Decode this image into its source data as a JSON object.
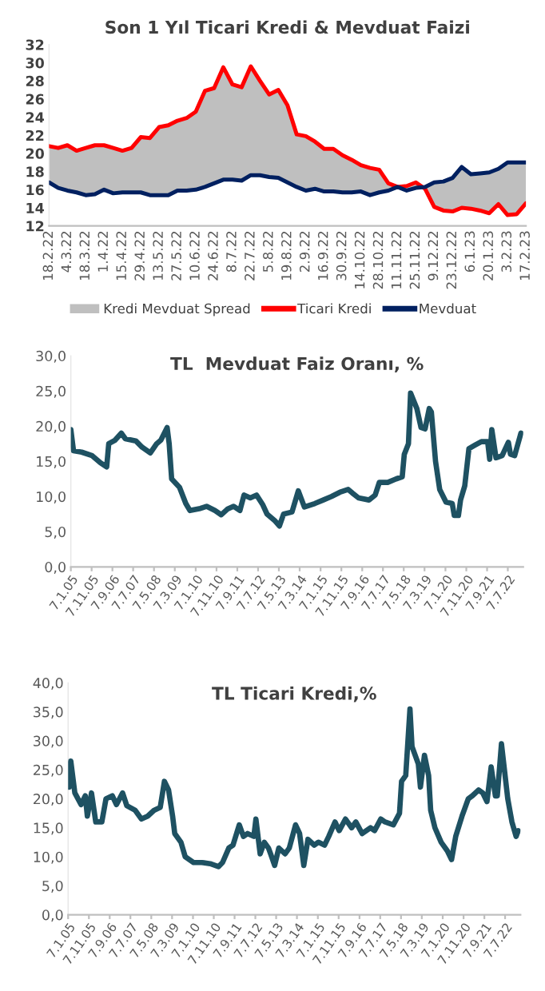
{
  "chart_data": [
    {
      "type": "line",
      "title": "Son 1 Yıl Ticari Kredi & Mevduat Faizi",
      "categories": [
        "18.2.22",
        null,
        "4.3.22",
        null,
        "18.3.22",
        null,
        "1.4.22",
        null,
        "15.4.22",
        null,
        "29.4.22",
        null,
        "13.5.22",
        null,
        "27.5.22",
        null,
        "10.6.22",
        null,
        "24.6.22",
        null,
        "8.7.22",
        null,
        "22.7.22",
        null,
        "5.8.22",
        null,
        "19.8.22",
        null,
        "2.9.22",
        null,
        "16.9.22",
        null,
        "30.9.22",
        null,
        "14.10.22",
        null,
        "28.10.22",
        null,
        "11.11.22",
        null,
        "25.11.22",
        null,
        "9.12.22",
        null,
        "23.12.22",
        null,
        "6.1.23",
        null,
        "20.1.23",
        null,
        "3.2.23",
        null,
        "17.2.23"
      ],
      "series": [
        {
          "name": "Kredi Mevduat Spread",
          "color": "#bfbfbf",
          "values": [
            null,
            null,
            null,
            null,
            null,
            null,
            null,
            null,
            null,
            null,
            null,
            null,
            null,
            null,
            null,
            null,
            null,
            null,
            null,
            null,
            null,
            null,
            null,
            null,
            null,
            null,
            null,
            null,
            null,
            null,
            null,
            null,
            null,
            null,
            null,
            null,
            null,
            null,
            null,
            null,
            null,
            null,
            null,
            null,
            null,
            null,
            null,
            null,
            null,
            null,
            null,
            null,
            null
          ],
          "lower": [
            16.8,
            16.2,
            15.9,
            15.7,
            15.4,
            15.5,
            16.0,
            15.6,
            15.7,
            15.7,
            15.7,
            15.4,
            15.4,
            15.4,
            15.9,
            15.9,
            16.0,
            16.3,
            16.7,
            17.1,
            17.1,
            17.0,
            17.6,
            17.6,
            17.4,
            17.3,
            16.8,
            16.3,
            15.9,
            16.1,
            15.8,
            15.8,
            15.7,
            15.7,
            15.8,
            15.4,
            15.7,
            15.9,
            16.3,
            15.9,
            16.2,
            16.3,
            16.8,
            16.9,
            17.3,
            18.5,
            17.7,
            17.8,
            17.9,
            18.3,
            19.0,
            19.0,
            19.0
          ],
          "upper": [
            20.8,
            20.6,
            20.9,
            20.3,
            20.6,
            20.9,
            20.9,
            20.6,
            20.3,
            20.6,
            21.8,
            21.7,
            22.9,
            23.1,
            23.6,
            23.9,
            24.6,
            26.9,
            27.2,
            29.5,
            27.6,
            27.3,
            29.6,
            28.0,
            26.5,
            27.0,
            25.3,
            22.1,
            21.9,
            21.3,
            20.5,
            20.5,
            19.8,
            19.3,
            18.7,
            18.4,
            18.2,
            16.7,
            16.3,
            16.4,
            16.8,
            16.1,
            14.1,
            13.7,
            13.6,
            14.0,
            13.9,
            13.7,
            13.4,
            14.4,
            13.2,
            13.3,
            14.5
          ]
        },
        {
          "name": "Ticari Kredi",
          "color": "#ff0000",
          "values": [
            20.8,
            20.6,
            20.9,
            20.3,
            20.6,
            20.9,
            20.9,
            20.6,
            20.3,
            20.6,
            21.8,
            21.7,
            22.9,
            23.1,
            23.6,
            23.9,
            24.6,
            26.9,
            27.2,
            29.5,
            27.6,
            27.3,
            29.6,
            28.0,
            26.5,
            27.0,
            25.3,
            22.1,
            21.9,
            21.3,
            20.5,
            20.5,
            19.8,
            19.3,
            18.7,
            18.4,
            18.2,
            16.7,
            16.3,
            16.4,
            16.8,
            16.1,
            14.1,
            13.7,
            13.6,
            14.0,
            13.9,
            13.7,
            13.4,
            14.4,
            13.2,
            13.3,
            14.5
          ]
        },
        {
          "name": "Mevduat",
          "color": "#002060",
          "values": [
            16.8,
            16.2,
            15.9,
            15.7,
            15.4,
            15.5,
            16.0,
            15.6,
            15.7,
            15.7,
            15.7,
            15.4,
            15.4,
            15.4,
            15.9,
            15.9,
            16.0,
            16.3,
            16.7,
            17.1,
            17.1,
            17.0,
            17.6,
            17.6,
            17.4,
            17.3,
            16.8,
            16.3,
            15.9,
            16.1,
            15.8,
            15.8,
            15.7,
            15.7,
            15.8,
            15.4,
            15.7,
            15.9,
            16.3,
            15.9,
            16.2,
            16.3,
            16.8,
            16.9,
            17.3,
            18.5,
            17.7,
            17.8,
            17.9,
            18.3,
            19.0,
            19.0,
            19.0
          ]
        }
      ],
      "ylim": [
        12,
        32
      ],
      "yticks": [
        12,
        14,
        16,
        18,
        20,
        22,
        24,
        26,
        28,
        30,
        32
      ],
      "legend": "bottom",
      "grid": false
    },
    {
      "type": "line",
      "title": "TL  Mevduat Faiz Oranı, %",
      "series": [
        {
          "color": "#1e5162",
          "x": [
            "2005-01-07",
            "2005-02",
            "2005-06",
            "2005-11",
            "2006-03",
            "2006-06",
            "2006-07",
            "2006-10",
            "2007-01",
            "2007-03",
            "2007-08",
            "2007-11",
            "2008-03",
            "2008-06",
            "2008-08",
            "2008-11",
            "2008-12",
            "2009-01-20",
            "2009-05",
            "2009-08",
            "2009-10",
            "2010-03",
            "2010-06",
            "2010-10",
            "2011-01",
            "2011-04",
            "2011-07",
            "2011-10",
            "2011-12",
            "2012-03",
            "2012-06",
            "2012-09",
            "2012-11",
            "2013-03",
            "2013-05",
            "2013-07",
            "2013-11",
            "2014-02",
            "2014-05",
            "2014-10",
            "2015-02",
            "2015-06",
            "2015-10",
            "2016-02",
            "2016-04",
            "2016-07",
            "2016-12",
            "2017-03",
            "2017-05",
            "2017-09",
            "2018-01",
            "2018-04",
            "2018-05",
            "2018-07",
            "2018-08",
            "2018-11",
            "2019-01",
            "2019-03",
            "2019-05",
            "2019-06",
            "2019-08",
            "2019-10",
            "2020-01",
            "2020-04",
            "2020-05",
            "2020-07",
            "2020-08",
            "2020-10",
            "2020-12",
            "2021-03",
            "2021-06",
            "2021-09",
            "2021-10",
            "2021-11",
            "2022-01",
            "2022-04",
            "2022-07",
            "2022-08",
            "2022-10",
            "2023-01"
          ],
          "values": [
            19.5,
            16.5,
            16.3,
            15.8,
            14.8,
            14.2,
            17.5,
            18.0,
            19.0,
            18.2,
            17.9,
            17.0,
            16.2,
            17.5,
            18.0,
            19.8,
            17.5,
            12.5,
            11.3,
            9.0,
            8.0,
            8.3,
            8.6,
            8.0,
            7.4,
            8.2,
            8.6,
            8.0,
            10.2,
            9.8,
            10.2,
            8.8,
            7.5,
            6.5,
            5.8,
            7.5,
            7.8,
            10.8,
            8.5,
            9.0,
            9.5,
            10.0,
            10.6,
            11.0,
            10.5,
            9.8,
            9.5,
            10.2,
            12.0,
            12.0,
            12.5,
            12.8,
            16.0,
            17.5,
            24.7,
            22.5,
            19.8,
            19.6,
            22.5,
            22.0,
            15.0,
            11.0,
            9.2,
            9.0,
            7.3,
            7.3,
            9.5,
            11.5,
            16.8,
            17.3,
            17.8,
            17.8,
            15.3,
            19.5,
            15.5,
            15.8,
            17.7,
            16.0,
            15.8,
            19.0
          ]
        }
      ],
      "xlim": [
        "2005-01-07",
        "2023-02-17"
      ],
      "xticks": [
        {
          "value": "2005-01-07",
          "label": "7.1.05"
        },
        {
          "value": "2005-11-07",
          "label": "7.11.05"
        },
        {
          "value": "2006-09-07",
          "label": "7.9.06"
        },
        {
          "value": "2007-07-07",
          "label": "7.7.07"
        },
        {
          "value": "2008-05-07",
          "label": "7.5.08"
        },
        {
          "value": "2009-03-07",
          "label": "7.3.09"
        },
        {
          "value": "2010-01-07",
          "label": "7.1.10"
        },
        {
          "value": "2010-11-07",
          "label": "7.11.10"
        },
        {
          "value": "2011-09-07",
          "label": "7.9.11"
        },
        {
          "value": "2012-07-07",
          "label": "7.7.12"
        },
        {
          "value": "2013-05-07",
          "label": "7.5.13"
        },
        {
          "value": "2014-03-07",
          "label": "7.3.14"
        },
        {
          "value": "2015-01-07",
          "label": "7.1.15"
        },
        {
          "value": "2015-11-07",
          "label": "7.11.15"
        },
        {
          "value": "2016-09-07",
          "label": "7.9.16"
        },
        {
          "value": "2017-07-07",
          "label": "7.7.17"
        },
        {
          "value": "2018-05-07",
          "label": "7.5.18"
        },
        {
          "value": "2019-03-07",
          "label": "7.3.19"
        },
        {
          "value": "2020-01-07",
          "label": "7.1.20"
        },
        {
          "value": "2020-11-07",
          "label": "7.11.20"
        },
        {
          "value": "2021-09-07",
          "label": "7.9.21"
        },
        {
          "value": "2022-07-07",
          "label": "7.7.22"
        }
      ],
      "ylim": [
        0,
        30
      ],
      "yticks": [
        {
          "value": 0,
          "label": "0,0"
        },
        {
          "value": 5,
          "label": "5,0"
        },
        {
          "value": 10,
          "label": "10,0"
        },
        {
          "value": 15,
          "label": "15,0"
        },
        {
          "value": 20,
          "label": "20,0"
        },
        {
          "value": 25,
          "label": "25,0"
        },
        {
          "value": 30,
          "label": "30,0"
        }
      ],
      "grid": false
    },
    {
      "type": "line",
      "title": "TL Ticari Kredi,%",
      "series": [
        {
          "color": "#1e5162",
          "x": [
            "2005-01-07",
            "2005-01-21",
            "2005-02-15",
            "2005-04",
            "2005-07",
            "2005-09",
            "2005-10",
            "2005-12",
            "2006-02",
            "2006-05",
            "2006-07",
            "2006-10",
            "2006-12",
            "2007-03",
            "2007-05",
            "2007-09",
            "2007-12",
            "2008-03",
            "2008-06",
            "2008-09",
            "2008-11",
            "2009-01",
            "2009-03",
            "2009-04",
            "2009-07",
            "2009-09",
            "2010-01",
            "2010-05",
            "2010-09",
            "2011-01",
            "2011-03",
            "2011-06",
            "2011-08",
            "2011-11",
            "2012-01",
            "2012-03",
            "2012-06",
            "2012-07",
            "2012-09",
            "2012-11",
            "2013-01",
            "2013-02",
            "2013-04",
            "2013-06",
            "2013-09",
            "2013-11",
            "2014-02",
            "2014-04",
            "2014-06",
            "2014-08",
            "2014-11",
            "2015-01",
            "2015-04",
            "2015-06",
            "2015-09",
            "2015-11",
            "2016-02",
            "2016-05",
            "2016-07",
            "2016-10",
            "2017-02",
            "2017-04",
            "2017-07",
            "2017-09",
            "2018-01",
            "2018-04",
            "2018-05",
            "2018-07",
            "2018-09",
            "2018-10",
            "2019-01",
            "2019-02",
            "2019-04",
            "2019-06",
            "2019-07",
            "2019-09",
            "2019-12",
            "2020-03",
            "2020-05",
            "2020-07",
            "2020-10",
            "2021-01",
            "2021-03",
            "2021-06",
            "2021-08",
            "2021-10",
            "2021-12",
            "2022-02",
            "2022-03",
            "2022-05",
            "2022-08",
            "2022-10",
            "2022-12",
            "2023-01"
          ],
          "values": [
            26.0,
            22.0,
            26.5,
            21.0,
            19.0,
            20.5,
            17.0,
            21.0,
            16.0,
            16.0,
            20.0,
            20.5,
            19.0,
            21.0,
            18.8,
            18.0,
            16.5,
            17.0,
            18.0,
            18.5,
            23.0,
            21.5,
            17.0,
            14.0,
            12.5,
            10.0,
            9.0,
            9.0,
            8.8,
            8.3,
            9.0,
            11.5,
            12.0,
            15.5,
            13.5,
            14.0,
            13.5,
            16.5,
            10.5,
            12.5,
            11.5,
            10.5,
            8.5,
            11.5,
            10.5,
            11.5,
            15.5,
            14.0,
            8.5,
            13.0,
            12.0,
            12.5,
            12.0,
            13.5,
            16.0,
            14.5,
            16.5,
            15.0,
            16.0,
            14.0,
            15.0,
            14.5,
            16.5,
            16.0,
            15.5,
            17.5,
            23.0,
            24.0,
            35.5,
            29.0,
            26.0,
            22.0,
            27.5,
            24.0,
            18.0,
            15.0,
            12.5,
            11.0,
            9.5,
            13.5,
            17.0,
            20.0,
            20.5,
            21.5,
            21.0,
            19.5,
            25.5,
            20.5,
            20.5,
            29.5,
            20.0,
            16.0,
            13.5,
            14.5
          ]
        }
      ],
      "xlim": [
        "2005-01-07",
        "2023-02-17"
      ],
      "xticks": [
        {
          "value": "2005-01-07",
          "label": "7.1.05"
        },
        {
          "value": "2005-11-07",
          "label": "7.11.05"
        },
        {
          "value": "2006-09-07",
          "label": "7.9.06"
        },
        {
          "value": "2007-07-07",
          "label": "7.7.07"
        },
        {
          "value": "2008-05-07",
          "label": "7.5.08"
        },
        {
          "value": "2009-03-07",
          "label": "7.3.09"
        },
        {
          "value": "2010-01-07",
          "label": "7.1.10"
        },
        {
          "value": "2010-11-07",
          "label": "7.11.10"
        },
        {
          "value": "2011-09-07",
          "label": "7.9.11"
        },
        {
          "value": "2012-07-07",
          "label": "7.7.12"
        },
        {
          "value": "2013-05-07",
          "label": "7.5.13"
        },
        {
          "value": "2014-03-07",
          "label": "7.3.14"
        },
        {
          "value": "2015-01-07",
          "label": "7.1.15"
        },
        {
          "value": "2015-11-07",
          "label": "7.11.15"
        },
        {
          "value": "2016-09-07",
          "label": "7.9.16"
        },
        {
          "value": "2017-07-07",
          "label": "7.7.17"
        },
        {
          "value": "2018-05-07",
          "label": "7.5.18"
        },
        {
          "value": "2019-03-07",
          "label": "7.3.19"
        },
        {
          "value": "2020-01-07",
          "label": "7.1.20"
        },
        {
          "value": "2020-11-07",
          "label": "7.11.20"
        },
        {
          "value": "2021-09-07",
          "label": "7.9.21"
        },
        {
          "value": "2022-07-07",
          "label": "7.7.22"
        }
      ],
      "ylim": [
        0,
        40
      ],
      "yticks": [
        {
          "value": 0,
          "label": "0,0"
        },
        {
          "value": 5,
          "label": "5,0"
        },
        {
          "value": 10,
          "label": "10,0"
        },
        {
          "value": 15,
          "label": "15,0"
        },
        {
          "value": 20,
          "label": "20,0"
        },
        {
          "value": 25,
          "label": "25,0"
        },
        {
          "value": 30,
          "label": "30,0"
        },
        {
          "value": 35,
          "label": "35,0"
        },
        {
          "value": 40,
          "label": "40,0"
        }
      ],
      "grid": false
    }
  ]
}
